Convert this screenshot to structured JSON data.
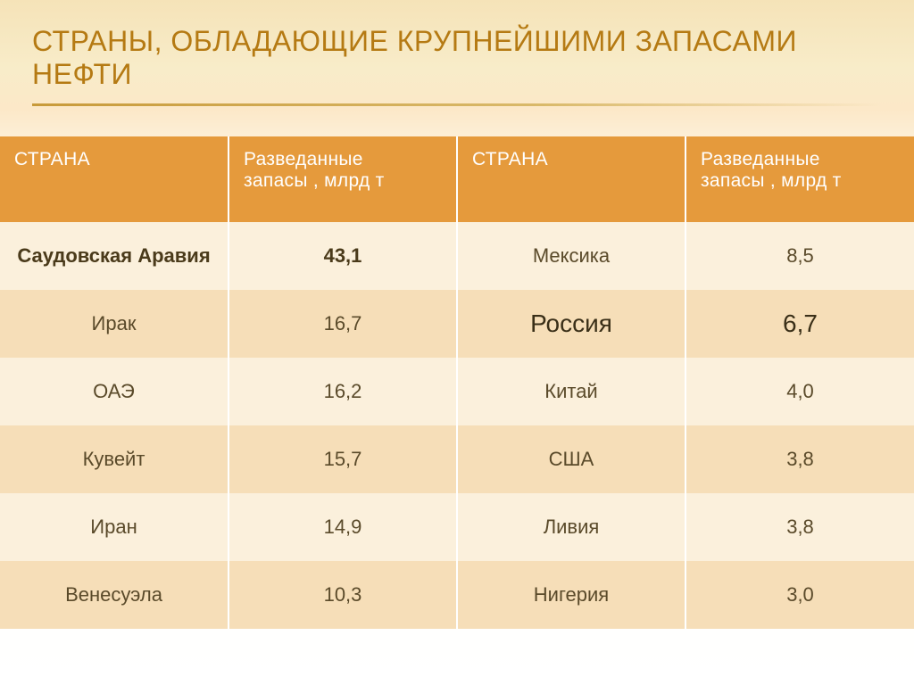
{
  "title": "Страны,  обладающие крупнейшими запасами нефти",
  "colors": {
    "title_color": "#b57a13",
    "header_bg": "#e59a3c",
    "header_text": "#ffffff",
    "row_odd_bg": "#fbf0dc",
    "row_even_bg": "#f6deb8",
    "text_color": "#5a4a2a",
    "underline_color": "#c89a3a"
  },
  "typography": {
    "title_fontsize": 32,
    "header_fontsize": 21,
    "cell_fontsize": 22,
    "emphasis_fontsize": 28,
    "font_family": "Arial"
  },
  "table": {
    "type": "table",
    "columns": [
      {
        "key": "country_left",
        "label": "Страна"
      },
      {
        "key": "reserves_left",
        "label_line1": "Разведанные",
        "label_line2": "запасы  , млрд т"
      },
      {
        "key": "country_right",
        "label": "Страна"
      },
      {
        "key": "reserves_right",
        "label_line1": "Разведанные",
        "label_line2": "запасы  , млрд т"
      }
    ],
    "column_widths_pct": [
      25,
      25,
      25,
      25
    ],
    "rows": [
      {
        "country_left": "Саудовская Аравия",
        "reserves_left": "43,1",
        "country_right": "Мексика",
        "reserves_right": "8,5",
        "emphasis_left": true
      },
      {
        "country_left": "Ирак",
        "reserves_left": "16,7",
        "country_right": "Россия",
        "reserves_right": "6,7",
        "emphasis_right": true
      },
      {
        "country_left": "ОАЭ",
        "reserves_left": "16,2",
        "country_right": "Китай",
        "reserves_right": "4,0"
      },
      {
        "country_left": "Кувейт",
        "reserves_left": "15,7",
        "country_right": "США",
        "reserves_right": "3,8"
      },
      {
        "country_left": "Иран",
        "reserves_left": "14,9",
        "country_right": "Ливия",
        "reserves_right": "3,8"
      },
      {
        "country_left": "Венесуэла",
        "reserves_left": "10,3",
        "country_right": "Нигерия",
        "reserves_right": "3,0"
      }
    ]
  }
}
